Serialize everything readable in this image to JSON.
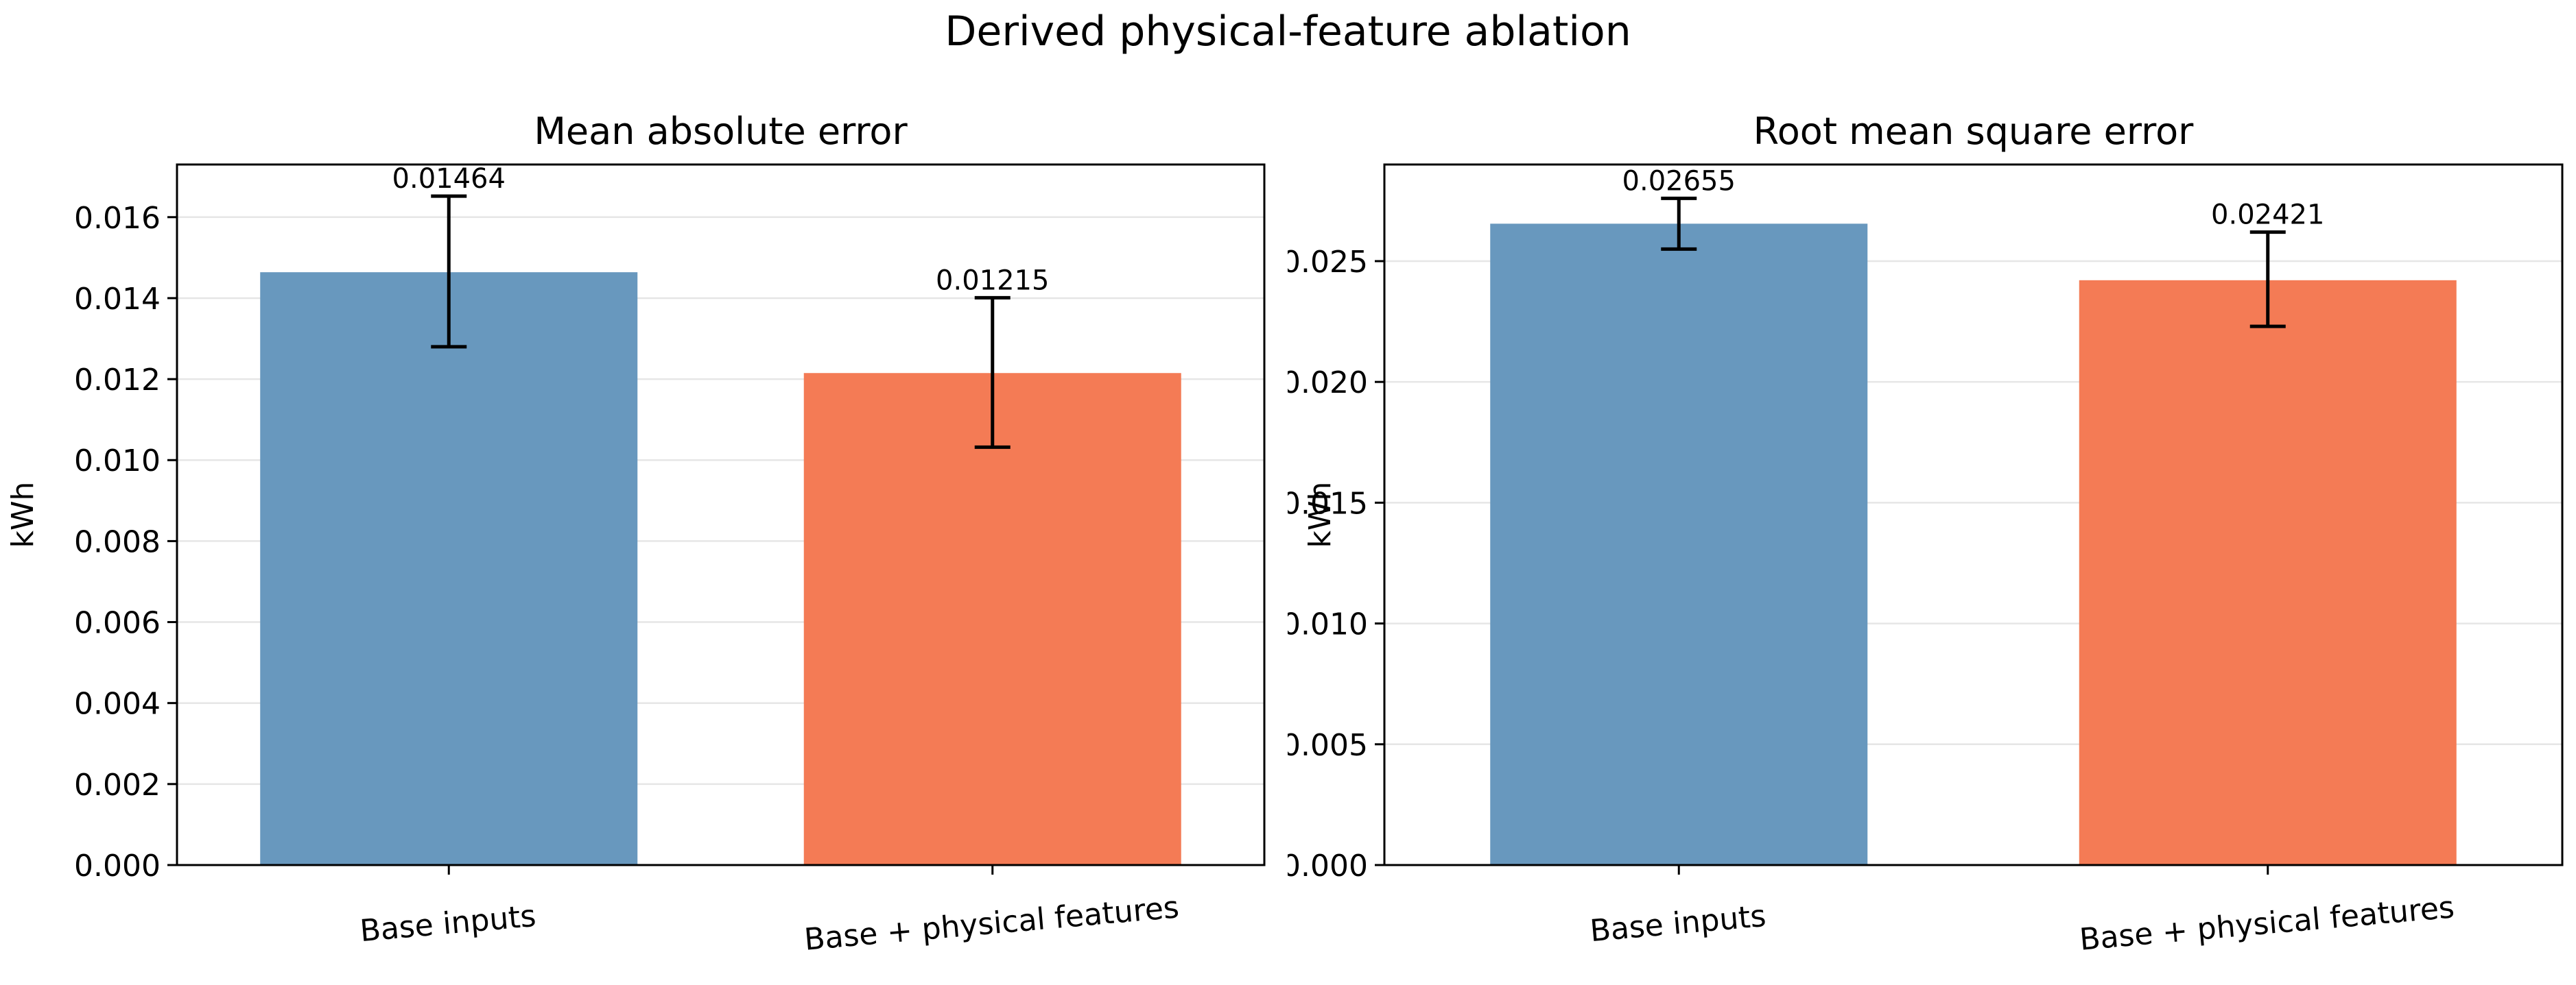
{
  "figure": {
    "title": "Derived physical-feature ablation"
  },
  "chart_data": [
    {
      "type": "bar",
      "title": "Mean absolute error",
      "xlabel": "",
      "ylabel": "kWh",
      "categories": [
        "Base inputs",
        "Base + physical features"
      ],
      "values": [
        0.01464,
        0.01215
      ],
      "errors": [
        [
          0.0128,
          0.01652
        ],
        [
          0.01032,
          0.01401
        ]
      ],
      "value_labels": [
        "0.01464",
        "0.01215"
      ],
      "colors": [
        "#6898be",
        "#f47b55"
      ],
      "ylim": [
        0,
        0.0173
      ],
      "yticks": [
        0.0,
        0.002,
        0.004,
        0.006,
        0.008,
        0.01,
        0.012,
        0.014,
        0.016
      ],
      "ytick_labels": [
        "0.000",
        "0.002",
        "0.004",
        "0.006",
        "0.008",
        "0.010",
        "0.012",
        "0.014",
        "0.016"
      ],
      "grid": "y"
    },
    {
      "type": "bar",
      "title": "Root mean square error",
      "xlabel": "",
      "ylabel": "kWh",
      "categories": [
        "Base inputs",
        "Base + physical features"
      ],
      "values": [
        0.02655,
        0.02421
      ],
      "errors": [
        [
          0.0255,
          0.0276
        ],
        [
          0.0223,
          0.0262
        ]
      ],
      "value_labels": [
        "0.02655",
        "0.02421"
      ],
      "colors": [
        "#6898be",
        "#f47b55"
      ],
      "ylim": [
        0,
        0.029
      ],
      "yticks": [
        0.0,
        0.005,
        0.01,
        0.015,
        0.02,
        0.025
      ],
      "ytick_labels": [
        "0.000",
        "0.005",
        "0.010",
        "0.015",
        "0.020",
        "0.025"
      ],
      "grid": "y"
    }
  ]
}
